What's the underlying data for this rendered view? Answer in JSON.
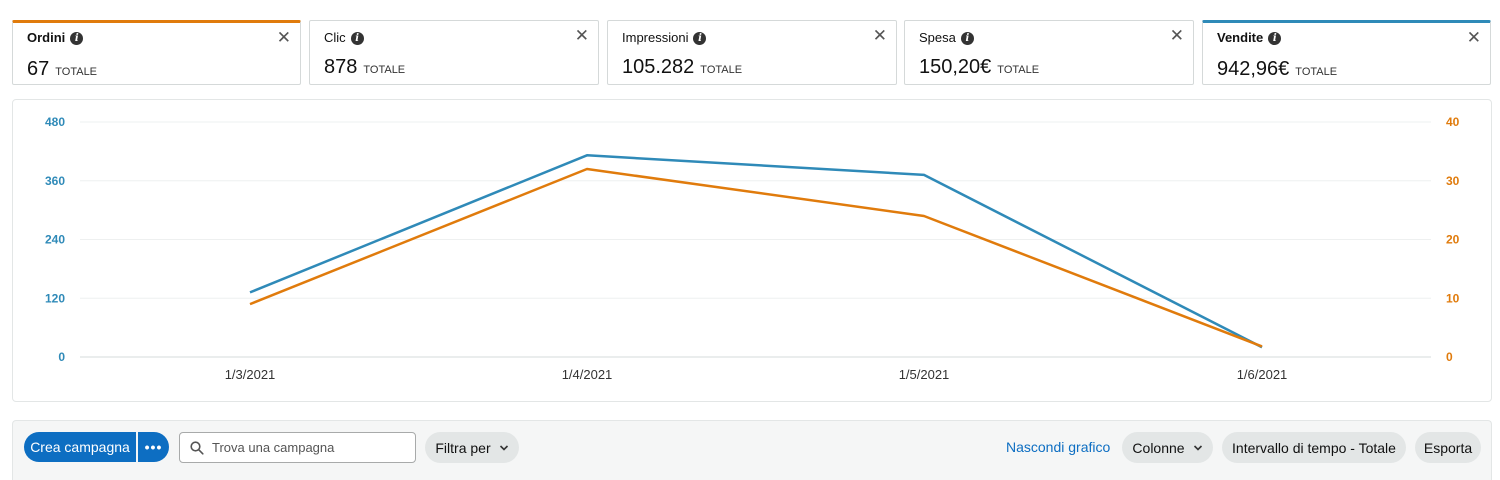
{
  "metrics": [
    {
      "label": "Ordini",
      "value": "67",
      "unit": "TOTALE"
    },
    {
      "label": "Clic",
      "value": "878",
      "unit": "TOTALE"
    },
    {
      "label": "Impressioni",
      "value": "105.282",
      "unit": "TOTALE"
    },
    {
      "label": "Spesa",
      "value": "150,20€",
      "unit": "TOTALE"
    },
    {
      "label": "Vendite",
      "value": "942,96€",
      "unit": "TOTALE"
    }
  ],
  "colors": {
    "orders": "#e07b0c",
    "sales": "#2f8ab8",
    "primary": "#0d6ec2"
  },
  "chart_data": {
    "type": "line",
    "x": [
      "1/3/2021",
      "1/4/2021",
      "1/5/2021",
      "1/6/2021"
    ],
    "series": [
      {
        "name": "Vendite",
        "axis": "left",
        "color": "#2f8ab8",
        "values": [
          132,
          412,
          372,
          20
        ]
      },
      {
        "name": "Ordini",
        "axis": "right",
        "color": "#e07b0c",
        "values": [
          9,
          32,
          24,
          1.8
        ]
      }
    ],
    "y_left": {
      "ticks": [
        "0",
        "120",
        "240",
        "360",
        "480"
      ],
      "range": [
        0,
        480
      ]
    },
    "y_right": {
      "ticks": [
        "0",
        "10",
        "20",
        "30",
        "40"
      ],
      "range": [
        0,
        40
      ]
    },
    "grid": true
  },
  "toolbar": {
    "create_label": "Crea campagna",
    "more_label": "•••",
    "search_placeholder": "Trova una campagna",
    "filter_label": "Filtra per",
    "hide_chart_label": "Nascondi grafico",
    "columns_label": "Colonne",
    "range_label": "Intervallo di tempo - Totale",
    "export_label": "Esporta"
  }
}
